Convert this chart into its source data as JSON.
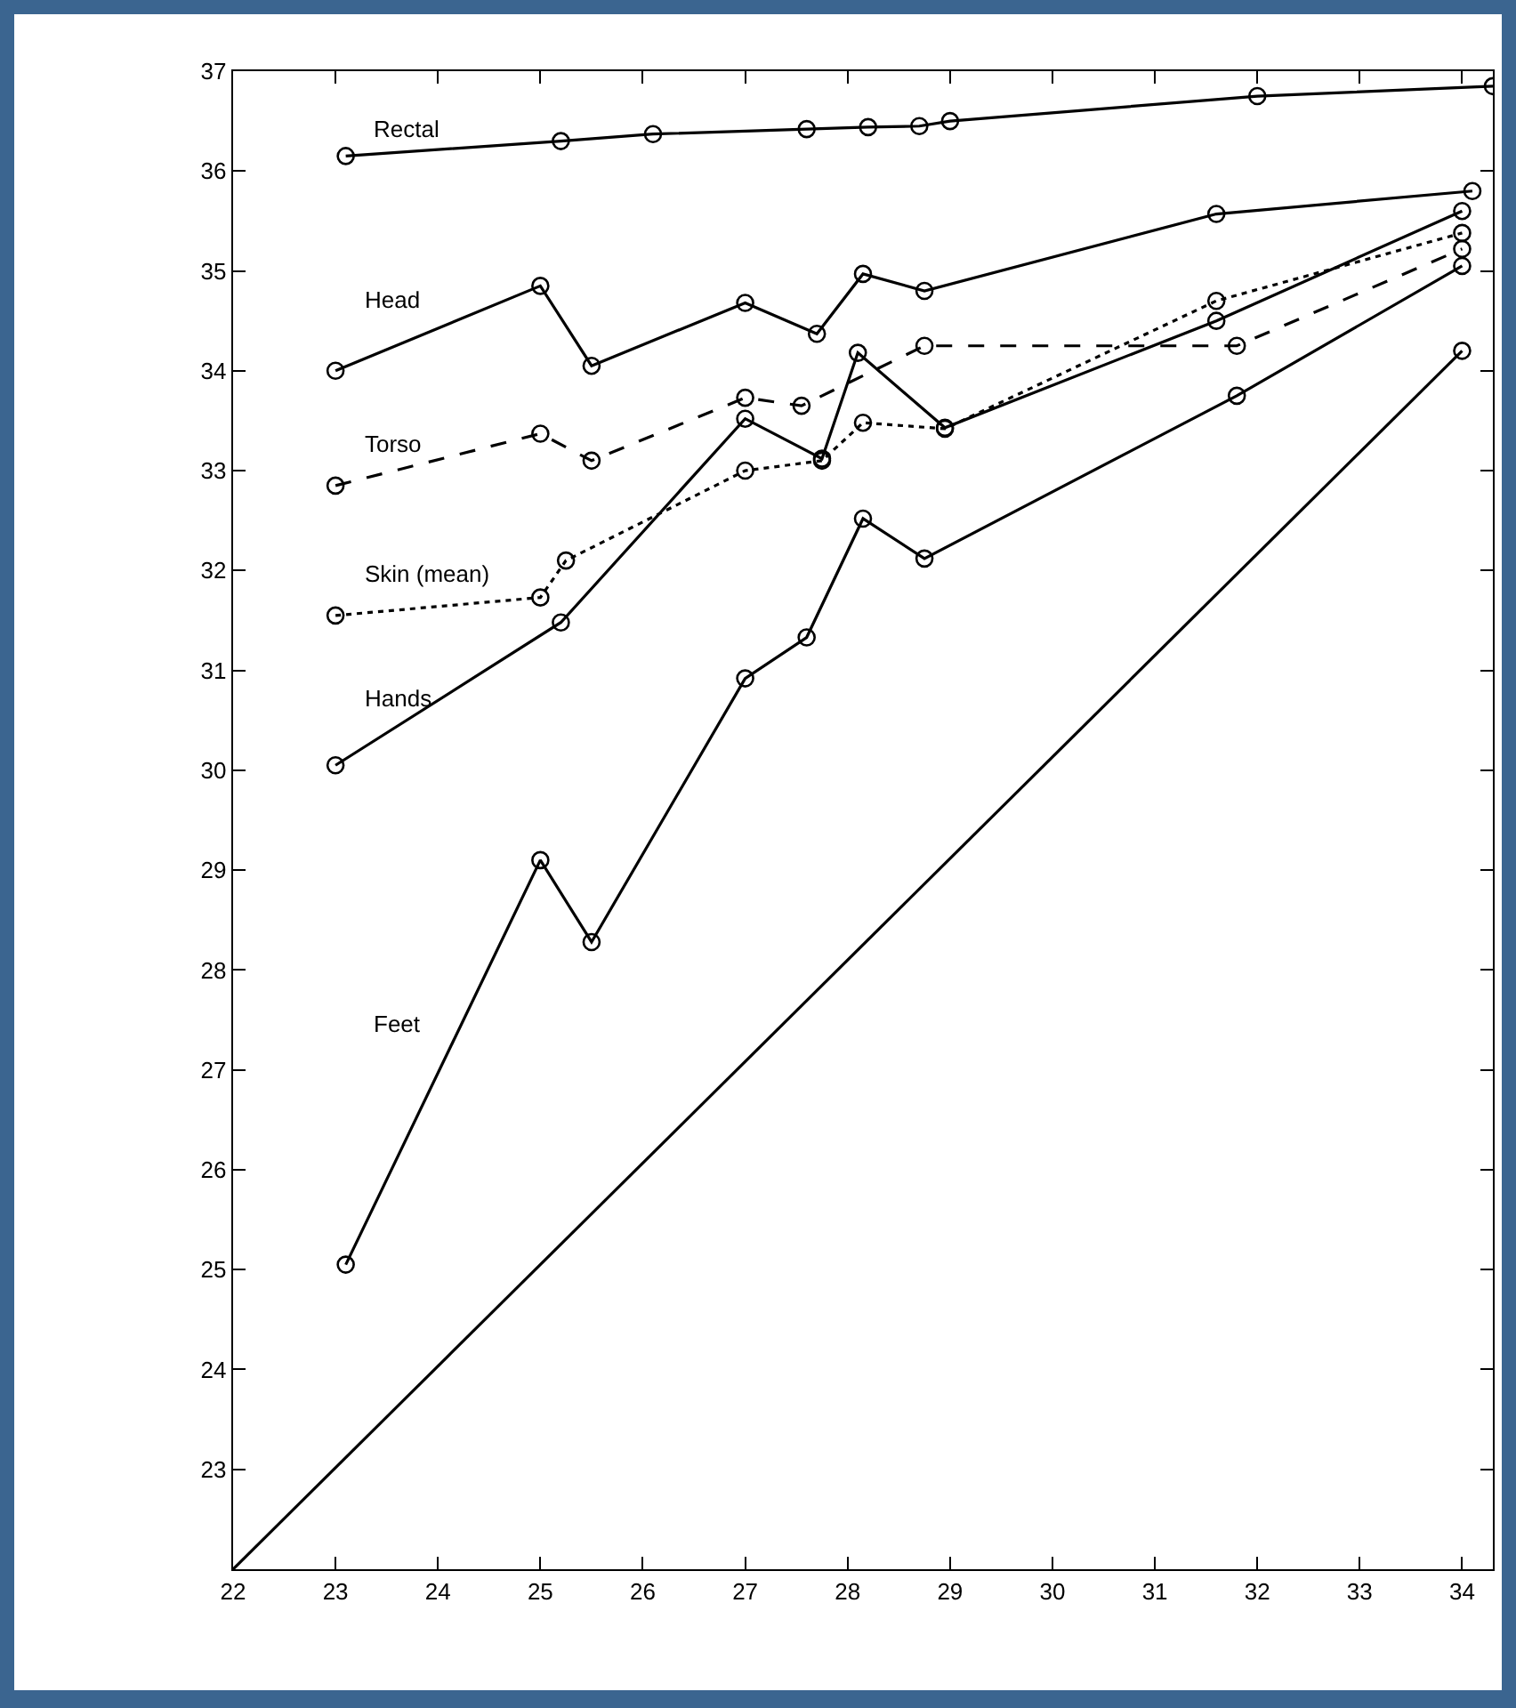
{
  "chart_data": {
    "type": "line",
    "xlim": [
      22,
      34.3
    ],
    "xticks": [
      22,
      23,
      24,
      25,
      26,
      27,
      28,
      29,
      30,
      31,
      32,
      33,
      34
    ],
    "ylim": [
      22,
      37
    ],
    "yticks": [
      23,
      24,
      25,
      26,
      27,
      28,
      29,
      30,
      31,
      32,
      33,
      34,
      35,
      36,
      37
    ],
    "grid": false,
    "legend": false,
    "marker": "circle",
    "series": [
      {
        "name": "Rectal",
        "color": "#000000",
        "line_style": "solid",
        "x": [
          23.1,
          25.2,
          26.1,
          27.6,
          28.2,
          28.7,
          29.0,
          32.0,
          34.3
        ],
        "values": [
          36.15,
          36.3,
          36.37,
          36.42,
          36.44,
          36.45,
          36.5,
          36.75,
          36.85
        ]
      },
      {
        "name": "Head",
        "color": "#000000",
        "line_style": "solid",
        "x": [
          23.0,
          25.0,
          25.5,
          27.0,
          27.7,
          28.15,
          28.75,
          31.6,
          34.1
        ],
        "values": [
          34.0,
          34.85,
          34.05,
          34.68,
          34.37,
          34.97,
          34.8,
          35.57,
          35.8
        ]
      },
      {
        "name": "Torso",
        "color": "#000000",
        "line_style": "dashed",
        "x": [
          23.0,
          25.0,
          25.5,
          27.0,
          27.55,
          28.75,
          31.8,
          34.0
        ],
        "values": [
          32.85,
          33.37,
          33.1,
          33.73,
          33.65,
          34.25,
          34.25,
          35.22
        ]
      },
      {
        "name": "Skin (mean)",
        "color": "#000000",
        "line_style": "dotted",
        "x": [
          23.0,
          25.0,
          25.25,
          27.0,
          27.75,
          28.15,
          28.95,
          31.6,
          34.0
        ],
        "values": [
          31.55,
          31.73,
          32.1,
          33.0,
          33.1,
          33.48,
          33.42,
          34.7,
          35.38
        ]
      },
      {
        "name": "Hands",
        "color": "#000000",
        "line_style": "solid",
        "x": [
          23.0,
          25.2,
          27.0,
          27.75,
          28.1,
          28.95,
          31.6,
          34.0
        ],
        "values": [
          30.05,
          31.48,
          33.52,
          33.12,
          34.18,
          33.43,
          34.5,
          35.6
        ]
      },
      {
        "name": "Feet",
        "color": "#000000",
        "line_style": "solid",
        "x": [
          23.1,
          25.0,
          25.5,
          27.0,
          27.6,
          28.15,
          28.75,
          31.8,
          34.0
        ],
        "values": [
          25.05,
          29.1,
          28.28,
          30.92,
          31.33,
          32.52,
          32.12,
          33.75,
          35.05
        ]
      },
      {
        "color": "#000000",
        "line_style": "solid",
        "marker": "none",
        "x": [
          22,
          34.0
        ],
        "values": [
          22,
          34.2
        ]
      },
      {
        "type": "scatter",
        "color": "#000000",
        "x": [
          34.0
        ],
        "values": [
          34.2
        ]
      }
    ]
  }
}
